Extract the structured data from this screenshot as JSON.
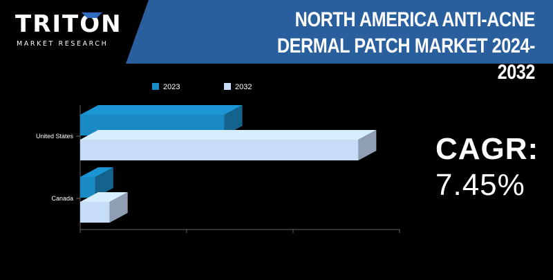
{
  "brand": {
    "name": "TRITON",
    "tagline": "MARKET RESEARCH"
  },
  "header": {
    "title": "NORTH AMERICA ANTI-ACNE DERMAL PATCH MARKET 2024-2032",
    "band_color": "#2a5f9e"
  },
  "cagr": {
    "label": "CAGR:",
    "value": "7.45%"
  },
  "chart_data": {
    "type": "bar",
    "orientation": "horizontal",
    "style": "3d",
    "categories": [
      "United States",
      "Canada"
    ],
    "series": [
      {
        "name": "2023",
        "color": "#1a8ac4",
        "values": [
          210,
          22
        ]
      },
      {
        "name": "2032",
        "color": "#c7dcf7",
        "values": [
          405,
          43
        ]
      }
    ],
    "xlim": [
      0,
      465
    ],
    "legend_position": "top",
    "grid": false
  }
}
